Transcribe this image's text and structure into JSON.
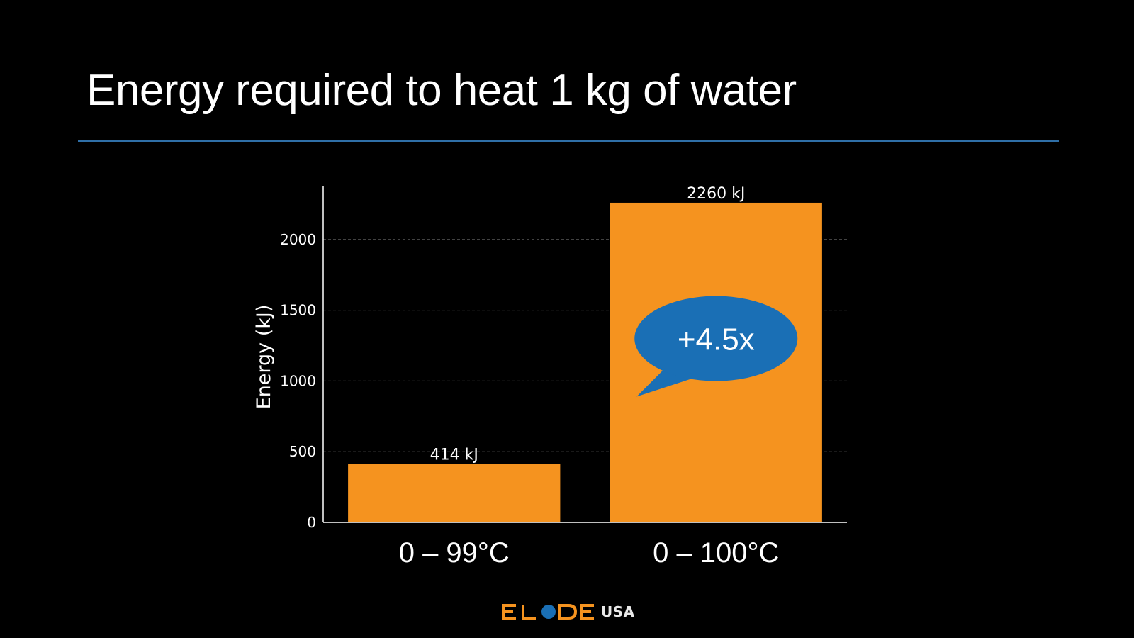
{
  "slide": {
    "title": "Energy required to heat 1 kg of water",
    "rule_color": "#2f6fa7"
  },
  "chart_data": {
    "type": "bar",
    "categories": [
      "0 – 99°C",
      "0 – 100°C"
    ],
    "values": [
      414,
      2260
    ],
    "data_labels": [
      "414 kJ",
      "2260 kJ"
    ],
    "ylabel": "Energy (kJ)",
    "xlabel": "",
    "ylim": [
      0,
      2380
    ],
    "yticks": [
      0,
      500,
      1000,
      1500,
      2000
    ],
    "grid": true,
    "bar_color": "#f5931f",
    "annotation": {
      "text": "+4.5x",
      "color": "#1a6fb5",
      "target_category": "0 – 100°C",
      "y_value": 1300
    }
  },
  "footer": {
    "logo_icon": "elode-logo-icon",
    "logo_suffix": "USA",
    "logo_color": "#f5931f",
    "logo_dot_color": "#1a6fb5"
  }
}
